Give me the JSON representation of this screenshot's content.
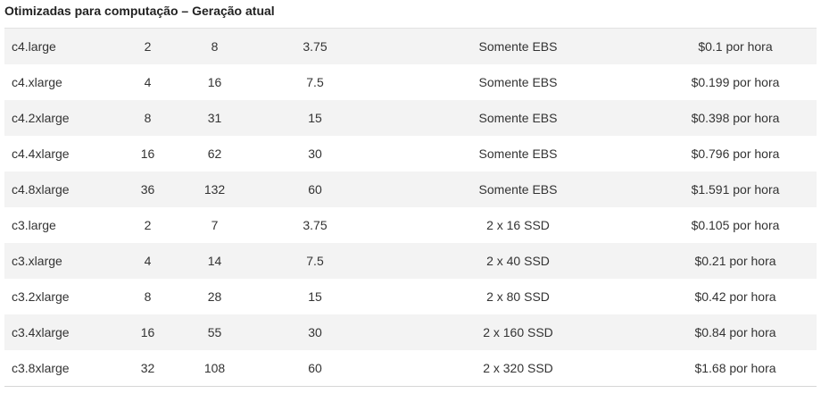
{
  "section": {
    "title": "Otimizadas para computação – Geração atual"
  },
  "table": {
    "rows": [
      {
        "type": "c4.large",
        "vcpu": "2",
        "ecu": "8",
        "memory": "3.75",
        "storage": "Somente EBS",
        "price": "$0.1 por hora"
      },
      {
        "type": "c4.xlarge",
        "vcpu": "4",
        "ecu": "16",
        "memory": "7.5",
        "storage": "Somente EBS",
        "price": "$0.199 por hora"
      },
      {
        "type": "c4.2xlarge",
        "vcpu": "8",
        "ecu": "31",
        "memory": "15",
        "storage": "Somente EBS",
        "price": "$0.398 por hora"
      },
      {
        "type": "c4.4xlarge",
        "vcpu": "16",
        "ecu": "62",
        "memory": "30",
        "storage": "Somente EBS",
        "price": "$0.796 por hora"
      },
      {
        "type": "c4.8xlarge",
        "vcpu": "36",
        "ecu": "132",
        "memory": "60",
        "storage": "Somente EBS",
        "price": "$1.591 por hora"
      },
      {
        "type": "c3.large",
        "vcpu": "2",
        "ecu": "7",
        "memory": "3.75",
        "storage": "2 x 16 SSD",
        "price": "$0.105 por hora"
      },
      {
        "type": "c3.xlarge",
        "vcpu": "4",
        "ecu": "14",
        "memory": "7.5",
        "storage": "2 x 40 SSD",
        "price": "$0.21 por hora"
      },
      {
        "type": "c3.2xlarge",
        "vcpu": "8",
        "ecu": "28",
        "memory": "15",
        "storage": "2 x 80 SSD",
        "price": "$0.42 por hora"
      },
      {
        "type": "c3.4xlarge",
        "vcpu": "16",
        "ecu": "55",
        "memory": "30",
        "storage": "2 x 160 SSD",
        "price": "$0.84 por hora"
      },
      {
        "type": "c3.8xlarge",
        "vcpu": "32",
        "ecu": "108",
        "memory": "60",
        "storage": "2 x 320 SSD",
        "price": "$1.68 por hora"
      }
    ]
  },
  "colors": {
    "stripe": "#f3f3f3",
    "text": "#333333",
    "rule": "#d6d6d6"
  }
}
